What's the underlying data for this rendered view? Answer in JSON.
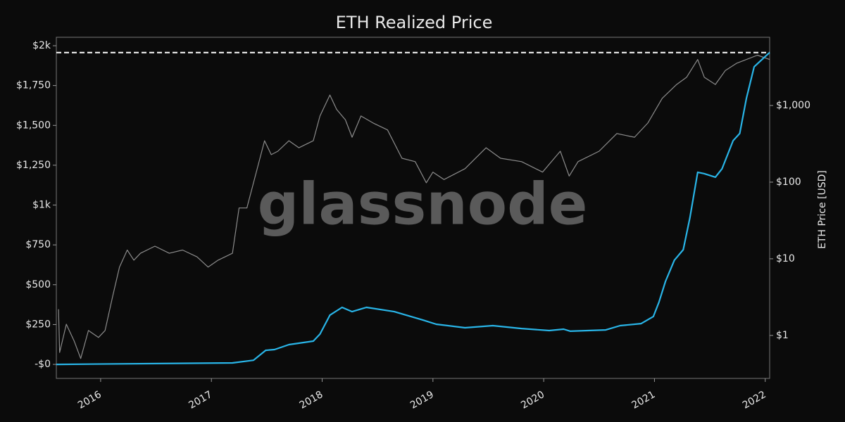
{
  "chart_data": {
    "type": "line",
    "title": "ETH Realized Price",
    "y2_label": "ETH Price [USD]",
    "watermark": "glassnode",
    "xlim": [
      2015.6,
      2022.04
    ],
    "xticks": [
      2016,
      2017,
      2018,
      2019,
      2020,
      2021,
      2022
    ],
    "ylim": [
      -88,
      2053
    ],
    "yticks": [
      {
        "value": 0,
        "label": "-$0"
      },
      {
        "value": 250,
        "label": "$250"
      },
      {
        "value": 500,
        "label": "$500"
      },
      {
        "value": 750,
        "label": "$750"
      },
      {
        "value": 1000,
        "label": "$1k"
      },
      {
        "value": 1250,
        "label": "$1,250"
      },
      {
        "value": 1500,
        "label": "$1,500"
      },
      {
        "value": 1750,
        "label": "$1,750"
      },
      {
        "value": 2000,
        "label": "$2k"
      }
    ],
    "y2lim": [
      0.275,
      7760
    ],
    "y2scale": "log",
    "y2ticks": [
      {
        "value": 1,
        "label": "$1"
      },
      {
        "value": 10,
        "label": "$10"
      },
      {
        "value": 100,
        "label": "$100"
      },
      {
        "value": 1000,
        "label": "$1,000"
      }
    ],
    "reference_line": {
      "value": 1957,
      "color": "#ffffff",
      "dashed": true
    },
    "series": [
      {
        "name": "Realized Price",
        "color": "#29b5e8",
        "axis": "y",
        "x": [
          2015.6,
          2017.19,
          2017.38,
          2017.49,
          2017.57,
          2017.7,
          2017.92,
          2017.98,
          2018.07,
          2018.18,
          2018.27,
          2018.4,
          2018.65,
          2018.91,
          2019.03,
          2019.29,
          2019.54,
          2019.8,
          2020.05,
          2020.18,
          2020.24,
          2020.56,
          2020.69,
          2020.88,
          2020.99,
          2021.04,
          2021.1,
          2021.18,
          2021.26,
          2021.32,
          2021.39,
          2021.45,
          2021.55,
          2021.61,
          2021.71,
          2021.77,
          2021.83,
          2021.9,
          2021.99,
          2022.04
        ],
        "values": [
          0,
          9,
          26,
          88,
          93,
          124,
          146,
          190,
          309,
          358,
          331,
          358,
          331,
          278,
          252,
          230,
          243,
          225,
          212,
          221,
          208,
          216,
          243,
          256,
          300,
          389,
          521,
          654,
          720,
          919,
          1206,
          1197,
          1175,
          1228,
          1404,
          1449,
          1670,
          1868,
          1926,
          1957
        ]
      },
      {
        "name": "ETH Price",
        "color": "#8c8c8c",
        "axis": "y2",
        "x": [
          2015.62,
          2015.63,
          2015.69,
          2015.76,
          2015.82,
          2015.89,
          2015.98,
          2016.04,
          2016.11,
          2016.17,
          2016.24,
          2016.3,
          2016.36,
          2016.49,
          2016.62,
          2016.74,
          2016.87,
          2016.97,
          2017.06,
          2017.19,
          2017.25,
          2017.32,
          2017.38,
          2017.48,
          2017.54,
          2017.6,
          2017.7,
          2017.79,
          2017.92,
          2017.98,
          2018.07,
          2018.13,
          2018.21,
          2018.27,
          2018.35,
          2018.46,
          2018.59,
          2018.72,
          2018.84,
          2018.94,
          2019.0,
          2019.1,
          2019.29,
          2019.48,
          2019.61,
          2019.8,
          2019.99,
          2020.15,
          2020.23,
          2020.31,
          2020.5,
          2020.66,
          2020.82,
          2020.94,
          2021.07,
          2021.2,
          2021.29,
          2021.39,
          2021.45,
          2021.55,
          2021.64,
          2021.74,
          2021.83,
          2021.93,
          2022.04
        ],
        "values": [
          2.2,
          0.6,
          1.4,
          0.85,
          0.5,
          1.16,
          0.94,
          1.16,
          3.3,
          7.8,
          13,
          9.6,
          11.8,
          14.6,
          11.8,
          13,
          10.6,
          7.8,
          9.6,
          11.8,
          46,
          46,
          98,
          347,
          228,
          253,
          347,
          281,
          347,
          730,
          1370,
          890,
          650,
          385,
          730,
          590,
          480,
          205,
          185,
          98,
          135,
          108,
          150,
          281,
          205,
          185,
          135,
          253,
          120,
          185,
          253,
          430,
          385,
          590,
          1240,
          1880,
          2330,
          3980,
          2330,
          1880,
          2860,
          3540,
          3980,
          4530,
          3980
        ]
      }
    ]
  }
}
